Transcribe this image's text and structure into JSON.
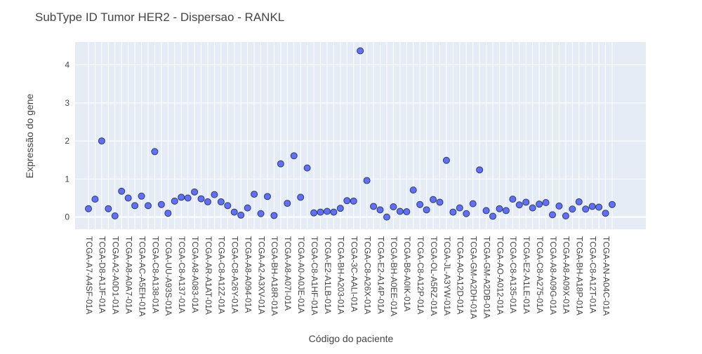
{
  "chart_data": {
    "type": "scatter",
    "title": "SubType ID Tumor HER2 - Dispersao - RANKL",
    "x_label": "Código do paciente",
    "y_label": "Expressão do gene",
    "categories": [
      "TCGA-A7-A4SF-01A",
      null,
      "TCGA-D8-A1JF-01A",
      null,
      "TCGA-A2-A0D1-01A",
      null,
      "TCGA-A8-A0A7-01A",
      null,
      "TCGA-AC-A5EH-01A",
      null,
      "TCGA-C8-A138-01A",
      null,
      "TCGA-UU-A93S-01A",
      null,
      "TCGA-C8-A137-01A",
      null,
      "TCGA-A8-A083-01A",
      null,
      "TCGA-AR-A1AT-01A",
      null,
      "TCGA-C8-A12Z-01A",
      null,
      "TCGA-C8-A26Y-01A",
      null,
      "TCGA-A8-A094-01A",
      null,
      "TCGA-A2-A3XV-01A",
      null,
      "TCGA-BH-A18R-01A",
      null,
      "TCGA-A8-A07I-01A",
      null,
      "TCGA-A0-A0JE-01A",
      null,
      "TCGA-C8-A1HF-01A",
      null,
      "TCGA-E2-A1LB-01A",
      null,
      "TCGA-BH-A203-01A",
      null,
      "TCGA-3C-AALI-01A",
      null,
      "TCGA-C8-A26X-01A",
      null,
      "TCGA-E2-A14P-01A",
      null,
      "TCGA-BH-A0EE-01A",
      null,
      "TCGA-B6-A0IK-01A",
      null,
      "TCGA-C8-A12P-01A",
      null,
      "TCGA-OL-A5RZ-01A",
      null,
      "TCGA-JL-A3YW-01A",
      null,
      "TCGA-A0-A12D-01A",
      null,
      "TCGA-GM-A2DH-01A",
      null,
      "TCGA-GM-A2DB-01A",
      null,
      "TCGA-AO-A012-01A",
      null,
      "TCGA-C8-A135-01A",
      null,
      "TCGA-E2-A1LE-01A",
      null,
      "TCGA-C8-A275-01A",
      null,
      "TCGA-A8-A09G-01A",
      null,
      "TCGA-A8-A09X-01A",
      null,
      "TCGA-BH-A18P-01A",
      null,
      "TCGA-C8-A12T-01A",
      null,
      "TCGA-AN-A04C-01A",
      null
    ],
    "values": [
      0.22,
      0.47,
      2.0,
      0.22,
      0.03,
      0.68,
      0.5,
      0.3,
      0.55,
      0.3,
      1.72,
      0.33,
      0.1,
      0.42,
      0.52,
      0.5,
      0.66,
      0.48,
      0.4,
      0.59,
      0.4,
      0.3,
      0.13,
      0.05,
      0.24,
      0.6,
      0.09,
      0.54,
      0.04,
      1.4,
      0.36,
      1.61,
      0.52,
      1.29,
      0.11,
      0.13,
      0.15,
      0.13,
      0.23,
      0.43,
      0.42,
      4.37,
      0.96,
      0.28,
      0.19,
      0.0,
      0.27,
      0.15,
      0.14,
      0.71,
      0.33,
      0.19,
      0.46,
      0.39,
      1.49,
      0.13,
      0.24,
      0.09,
      0.35,
      1.24,
      0.17,
      0.02,
      0.22,
      0.17,
      0.47,
      0.32,
      0.39,
      0.24,
      0.34,
      0.38,
      0.06,
      0.29,
      0.03,
      0.21,
      0.4,
      0.21,
      0.28,
      0.26,
      0.1,
      0.33
    ],
    "color": "#636efa",
    "ylim": [
      -0.32,
      4.6
    ],
    "yticks": [
      0,
      1,
      2,
      3,
      4
    ],
    "grid": true
  }
}
